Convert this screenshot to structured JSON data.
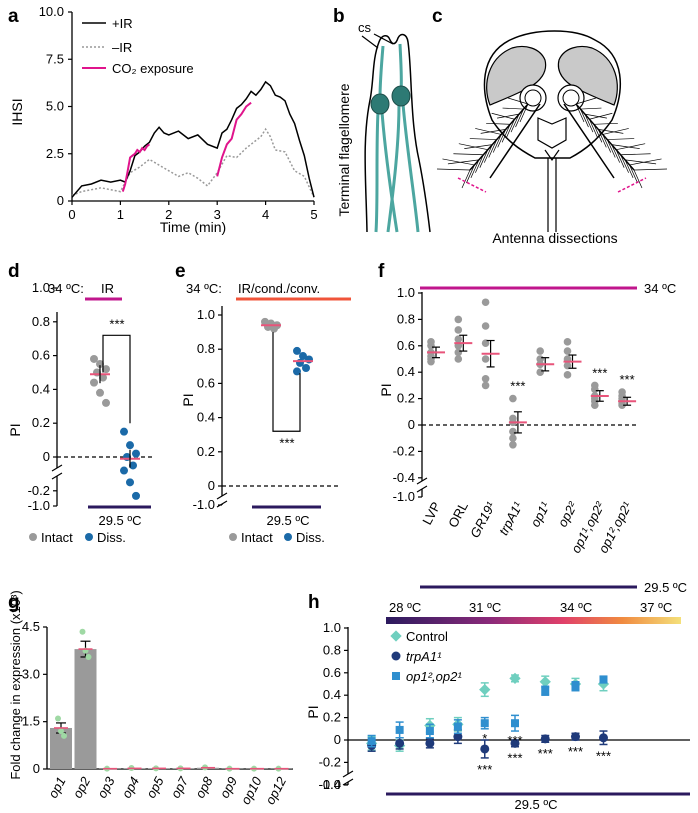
{
  "panel_letters": [
    "a",
    "b",
    "c",
    "d",
    "e",
    "f",
    "g",
    "h"
  ],
  "colors": {
    "magenta": "#e0148c",
    "orange_red": "#f0543a",
    "navy": "#2b1a5e",
    "gray": "#9a9a9a",
    "blue": "#1b6aa8",
    "pink_mean": "#e8547a",
    "teal_mint": "#6fcfbf",
    "dark_blue": "#1f3a7a",
    "mid_blue": "#2f8fcf",
    "bar_gray": "#9a9a9a",
    "green_dot": "#9fd9a4",
    "teal_neuron": "#4ca6a0"
  },
  "icons": [
    "antenna-flagellomere-illustration",
    "mosquito-head-illustration"
  ],
  "panel_b": {
    "label_cs": "cs",
    "label_side": "Terminal flagellomere"
  },
  "panel_c": {
    "caption": "Antenna dissections"
  },
  "chart_data": [
    {
      "id": "a",
      "type": "line",
      "xlabel": "Time (min)",
      "ylabel": "IHSI",
      "xlim": [
        0,
        5
      ],
      "ylim": [
        0,
        10
      ],
      "xticks": [
        "0",
        "1",
        "2",
        "3",
        "4",
        "5"
      ],
      "yticks": [
        "0",
        "2.5",
        "5.0",
        "7.5",
        "10.0"
      ],
      "legend": [
        "+IR",
        "–IR",
        "CO₂ exposure"
      ],
      "series": [
        {
          "name": "+IR",
          "x": [
            0,
            0.2,
            0.4,
            0.6,
            0.8,
            1.0,
            1.1,
            1.2,
            1.3,
            1.4,
            1.5,
            1.6,
            1.7,
            1.8,
            1.9,
            2.0,
            2.2,
            2.4,
            2.6,
            2.8,
            3.0,
            3.1,
            3.2,
            3.3,
            3.4,
            3.5,
            3.6,
            3.7,
            3.8,
            3.9,
            4.0,
            4.1,
            4.2,
            4.3,
            4.4,
            4.5,
            4.6,
            4.7,
            4.8,
            4.9,
            5.0
          ],
          "y": [
            0.2,
            0.8,
            0.9,
            1.1,
            1.0,
            1.1,
            1.0,
            1.6,
            2.4,
            2.6,
            2.9,
            3.1,
            3.6,
            3.9,
            3.6,
            3.5,
            3.7,
            3.3,
            3.5,
            3.0,
            2.8,
            3.6,
            3.8,
            4.3,
            4.9,
            5.1,
            5.4,
            5.8,
            5.6,
            5.9,
            6.3,
            6.1,
            5.6,
            5.5,
            5.3,
            4.6,
            4.1,
            3.2,
            2.4,
            1.2,
            0.2
          ]
        },
        {
          "name": "–IR",
          "x": [
            0,
            0.2,
            0.4,
            0.6,
            0.8,
            1.0,
            1.2,
            1.4,
            1.6,
            1.8,
            2.0,
            2.2,
            2.4,
            2.6,
            2.8,
            3.0,
            3.2,
            3.4,
            3.6,
            3.8,
            3.9,
            4.0,
            4.1,
            4.2,
            4.4,
            4.6,
            4.8,
            5.0
          ],
          "y": [
            0.3,
            0.5,
            0.6,
            0.7,
            0.6,
            0.5,
            1.5,
            1.8,
            2.2,
            1.9,
            1.6,
            1.3,
            1.5,
            1.2,
            0.8,
            1.5,
            2.4,
            2.3,
            2.8,
            3.2,
            3.4,
            3.8,
            3.4,
            2.7,
            2.6,
            1.6,
            1.3,
            0.2
          ]
        },
        {
          "name": "CO₂ exposure",
          "segments": [
            {
              "x": [
                1.05,
                1.1,
                1.15,
                1.2,
                1.25,
                1.3,
                1.35,
                1.4,
                1.45,
                1.5,
                1.55,
                1.6
              ],
              "y": [
                0.5,
                0.9,
                1.6,
                2.3,
                2.4,
                2.5,
                2.7,
                2.6,
                2.8,
                2.7,
                2.9,
                3.0
              ]
            },
            {
              "x": [
                3.0,
                3.1,
                3.2,
                3.3,
                3.4,
                3.5,
                3.6,
                3.7
              ],
              "y": [
                1.3,
                2.3,
                3.0,
                3.3,
                4.3,
                4.6,
                5.0,
                5.2
              ]
            }
          ]
        }
      ]
    },
    {
      "id": "d",
      "type": "scatter",
      "title_prefix": "34 ºC:",
      "title_condition": "IR",
      "bottom_temp": "29.5 ºC",
      "ylabel": "PI",
      "yticks": [
        "1.0",
        "0.8",
        "0.6",
        "0.4",
        "0.2",
        "0",
        "-0.2",
        "-1.0"
      ],
      "categories": [
        "Intact",
        "Diss."
      ],
      "means": [
        0.49,
        -0.01
      ],
      "points": [
        [
          0.58,
          0.55,
          0.52,
          0.5,
          0.47,
          0.44,
          0.38,
          0.32
        ],
        [
          0.15,
          0.07,
          0.02,
          0.0,
          -0.05,
          -0.08,
          -0.15,
          -0.23
        ]
      ],
      "significance": "***",
      "legend": [
        "Intact",
        "Diss."
      ]
    },
    {
      "id": "e",
      "type": "scatter",
      "title_prefix": "34 ºC:",
      "title_condition": "IR/cond./conv.",
      "bottom_temp": "29.5 ºC",
      "ylabel": "PI",
      "yticks": [
        "1.0",
        "0.8",
        "0.6",
        "0.4",
        "0.2",
        "0",
        "-1.0"
      ],
      "categories": [
        "Intact",
        "Diss."
      ],
      "means": [
        0.94,
        0.73
      ],
      "points": [
        [
          0.96,
          0.95,
          0.94,
          0.93,
          0.92
        ],
        [
          0.79,
          0.76,
          0.74,
          0.72,
          0.69,
          0.67
        ]
      ],
      "significance": "***",
      "legend": [
        "Intact",
        "Diss."
      ]
    },
    {
      "id": "f",
      "type": "scatter",
      "top_temp": "34 ºC",
      "bottom_temp": "29.5 ºC",
      "ylabel": "PI",
      "yticks": [
        "1.0",
        "0.8",
        "0.6",
        "0.4",
        "0.2",
        "0",
        "-0.2",
        "-0.4",
        "-1.0"
      ],
      "categories": [
        "LVP",
        "ORL",
        "GR19¹",
        "trpA1¹",
        "op1¹",
        "op2²",
        "op1¹,op2²",
        "op1²,op2¹"
      ],
      "means": [
        0.55,
        0.62,
        0.54,
        0.02,
        0.46,
        0.48,
        0.22,
        0.18
      ],
      "errors": [
        0.04,
        0.06,
        0.1,
        0.08,
        0.05,
        0.05,
        0.04,
        0.03
      ],
      "significance": [
        "",
        "",
        "",
        "***",
        "",
        "",
        "***",
        "***"
      ],
      "points": [
        [
          0.63,
          0.6,
          0.55,
          0.52,
          0.5,
          0.48
        ],
        [
          0.8,
          0.72,
          0.65,
          0.6,
          0.55,
          0.5
        ],
        [
          0.93,
          0.75,
          0.62,
          0.5,
          0.35,
          0.3
        ],
        [
          0.2,
          0.05,
          0.02,
          -0.05,
          -0.1,
          -0.15
        ],
        [
          0.56,
          0.5,
          0.46,
          0.4
        ],
        [
          0.63,
          0.56,
          0.5,
          0.45,
          0.38
        ],
        [
          0.3,
          0.27,
          0.22,
          0.2,
          0.18,
          0.15
        ],
        [
          0.25,
          0.22,
          0.2,
          0.18,
          0.16,
          0.15
        ]
      ]
    },
    {
      "id": "g",
      "type": "bar",
      "ylabel": "Fold change in expression (x10³)",
      "ylim": [
        0,
        4.5
      ],
      "yticks": [
        "0",
        "1.5",
        "3.0",
        "4.5"
      ],
      "categories": [
        "op1",
        "op2",
        "op3",
        "op4",
        "op5",
        "op7",
        "op8",
        "op9",
        "op10",
        "op12"
      ],
      "values": [
        1.3,
        3.8,
        0.01,
        0.02,
        0.02,
        0.02,
        0.04,
        0.01,
        0.01,
        0.01
      ],
      "errors": [
        0.16,
        0.25,
        0.01,
        0.01,
        0.01,
        0.01,
        0.02,
        0.01,
        0.01,
        0.01
      ],
      "points": [
        [
          1.6,
          1.2,
          1.05
        ],
        [
          4.35,
          3.75,
          3.55
        ],
        [
          0.01
        ],
        [
          0.03
        ],
        [
          0.02
        ],
        [
          0.02
        ],
        [
          0.05
        ],
        [
          0.01
        ],
        [
          0.01
        ],
        [
          0.01
        ]
      ]
    },
    {
      "id": "h",
      "type": "scatter",
      "ylabel": "PI",
      "yticks": [
        "1.0",
        "0.8",
        "0.6",
        "0.4",
        "0.2",
        "0",
        "-0.2",
        "-0.4",
        "-1.0"
      ],
      "gradient_labels": [
        "28 ºC",
        "31 ºC",
        "34 ºC",
        "37 ºC"
      ],
      "bottom_temp": "29.5 ºC",
      "legend": [
        "Control",
        "trpA1¹",
        "op1²,op2¹"
      ],
      "series": [
        {
          "name": "Control",
          "y": [
            -0.03,
            -0.05,
            0.13,
            0.14,
            0.45,
            0.55,
            0.52,
            0.5,
            0.5
          ],
          "err": [
            0.06,
            0.05,
            0.06,
            0.06,
            0.06,
            0.03,
            0.05,
            0.05,
            0.06
          ]
        },
        {
          "name": "trpA1¹",
          "y": [
            -0.05,
            -0.03,
            -0.03,
            0.03,
            -0.08,
            -0.03,
            0.01,
            0.03,
            0.02
          ],
          "err": [
            0.05,
            0.05,
            0.04,
            0.06,
            0.08,
            0.03,
            0.03,
            0.03,
            0.06
          ]
        },
        {
          "name": "op1²,op2¹",
          "y": [
            -0.01,
            0.09,
            0.08,
            0.12,
            0.15,
            0.15,
            0.44,
            0.48,
            0.54
          ],
          "err": [
            0.05,
            0.07,
            0.06,
            0.06,
            0.05,
            0.07,
            0.04,
            0.04,
            0.03
          ]
        }
      ],
      "sig_upper": [
        "",
        "",
        "",
        "",
        "*",
        "***",
        "",
        "",
        ""
      ],
      "sig_lower": [
        "",
        "",
        "",
        "",
        "***",
        "***",
        "***",
        "***",
        "***"
      ]
    }
  ]
}
